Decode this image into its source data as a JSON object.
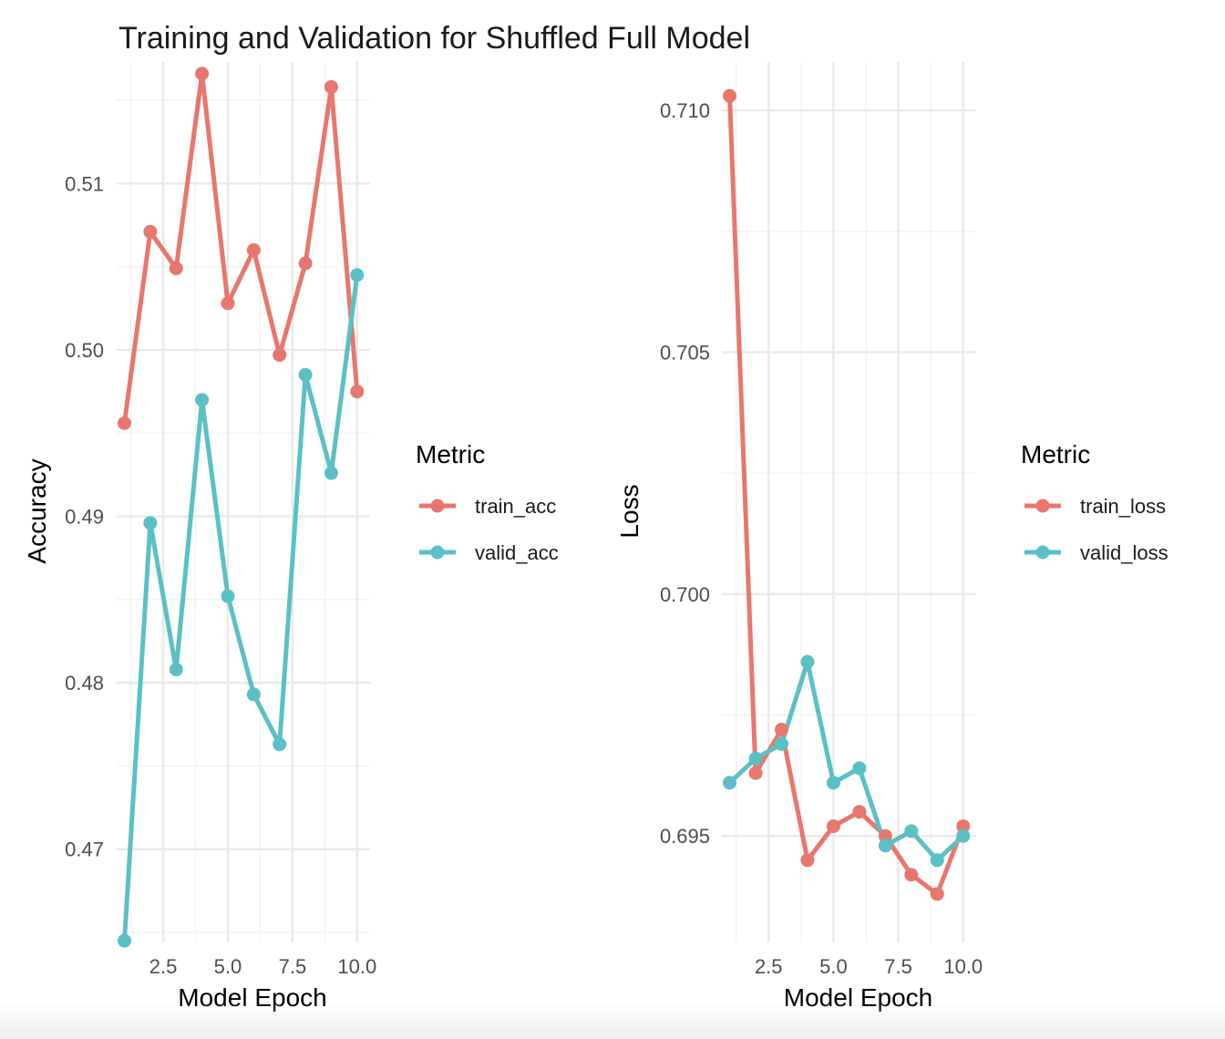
{
  "title": "Training and Validation for Shuffled Full Model",
  "colors": {
    "train": "#E7776E",
    "valid": "#5BC0C6"
  },
  "chart_data": [
    {
      "type": "line",
      "xlabel": "Model Epoch",
      "ylabel": "Accuracy",
      "x": [
        1,
        2,
        3,
        4,
        5,
        6,
        7,
        8,
        9,
        10
      ],
      "xlim": [
        0.7,
        10.5
      ],
      "ylim": [
        0.4644,
        0.5173
      ],
      "xticks": [
        2.5,
        5.0,
        7.5,
        10.0
      ],
      "xtick_labels": [
        "2.5",
        "5.0",
        "7.5",
        "10.0"
      ],
      "yticks": [
        0.47,
        0.48,
        0.49,
        0.5,
        0.51
      ],
      "ytick_labels": [
        "0.47",
        "0.48",
        "0.49",
        "0.50",
        "0.51"
      ],
      "grid": true,
      "legend": {
        "title": "Metric",
        "placement": "right"
      },
      "series": [
        {
          "name": "train_acc",
          "color_key": "train",
          "values": [
            0.4956,
            0.5071,
            0.5049,
            0.5166,
            0.5028,
            0.506,
            0.4997,
            0.5052,
            0.5158,
            0.4975
          ]
        },
        {
          "name": "valid_acc",
          "color_key": "valid",
          "values": [
            0.4645,
            0.4896,
            0.4808,
            0.497,
            0.4852,
            0.4793,
            0.4763,
            0.4985,
            0.4926,
            0.5045
          ]
        }
      ]
    },
    {
      "type": "line",
      "xlabel": "Model Epoch",
      "ylabel": "Loss",
      "x": [
        1,
        2,
        3,
        4,
        5,
        6,
        7,
        8,
        9,
        10
      ],
      "xlim": [
        0.7,
        10.5
      ],
      "ylim": [
        0.6928,
        0.711
      ],
      "xticks": [
        2.5,
        5.0,
        7.5,
        10.0
      ],
      "xtick_labels": [
        "2.5",
        "5.0",
        "7.5",
        "10.0"
      ],
      "yticks": [
        0.695,
        0.7,
        0.705,
        0.71
      ],
      "ytick_labels": [
        "0.695",
        "0.700",
        "0.705",
        "0.710"
      ],
      "grid": true,
      "legend": {
        "title": "Metric",
        "placement": "right"
      },
      "series": [
        {
          "name": "train_loss",
          "color_key": "train",
          "values": [
            0.7103,
            0.6963,
            0.6972,
            0.6945,
            0.6952,
            0.6955,
            0.695,
            0.6942,
            0.6938,
            0.6952
          ]
        },
        {
          "name": "valid_loss",
          "color_key": "valid",
          "values": [
            0.6961,
            0.6966,
            0.6969,
            0.6986,
            0.6961,
            0.6964,
            0.6948,
            0.6951,
            0.6945,
            0.695
          ]
        }
      ]
    }
  ]
}
